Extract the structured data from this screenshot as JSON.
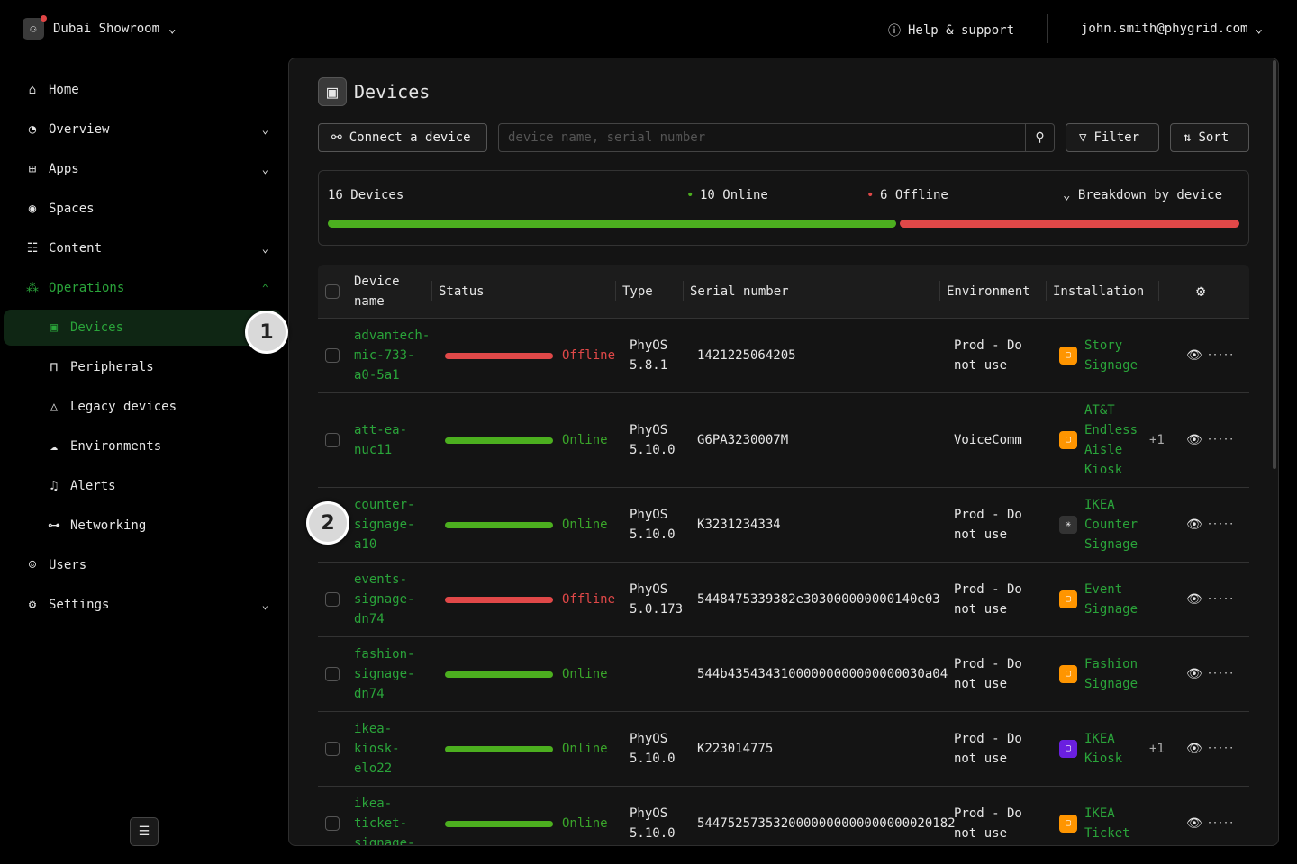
{
  "header": {
    "org": "Dubai Showroom",
    "help": "Help & support",
    "user": "john.smith@phygrid.com"
  },
  "nav": [
    {
      "label": "Home",
      "icon": "home-icon",
      "glyph": "⌂"
    },
    {
      "label": "Overview",
      "icon": "gauge-icon",
      "glyph": "◔",
      "chev": "⌄"
    },
    {
      "label": "Apps",
      "icon": "grid-icon",
      "glyph": "⊞",
      "chev": "⌄"
    },
    {
      "label": "Spaces",
      "icon": "location-pin-icon",
      "glyph": "◉"
    },
    {
      "label": "Content",
      "icon": "list-icon",
      "glyph": "☷",
      "chev": "⌄"
    },
    {
      "label": "Operations",
      "icon": "network-icon",
      "glyph": "⁂",
      "chev": "⌃",
      "green": true
    },
    {
      "label": "Devices",
      "icon": "device-icon",
      "glyph": "▣",
      "sub": true,
      "active": true
    },
    {
      "label": "Peripherals",
      "icon": "plug-icon",
      "glyph": "⊓",
      "sub": true
    },
    {
      "label": "Legacy devices",
      "icon": "warning-icon",
      "glyph": "△",
      "sub": true
    },
    {
      "label": "Environments",
      "icon": "cloud-icon",
      "glyph": "☁",
      "sub": true
    },
    {
      "label": "Alerts",
      "icon": "bell-icon",
      "glyph": "♫",
      "sub": true
    },
    {
      "label": "Networking",
      "icon": "sitemap-icon",
      "glyph": "⊶",
      "sub": true
    },
    {
      "label": "Users",
      "icon": "users-icon",
      "glyph": "☺"
    },
    {
      "label": "Settings",
      "icon": "gear-icon",
      "glyph": "⚙",
      "chev": "⌄"
    }
  ],
  "page": {
    "title": "Devices",
    "connect": "Connect a device",
    "search_placeholder": "device name, serial number",
    "filter": "Filter",
    "sort": "Sort"
  },
  "summary": {
    "total": "16 Devices",
    "online": "10 Online",
    "offline": "6 Offline",
    "breakdown": "Breakdown by device",
    "online_count": 10,
    "offline_count": 6
  },
  "colors": {
    "accent": "#2aa43a",
    "online": "#4caf1f",
    "offline": "#e04848",
    "orange": "#ff9500",
    "purple": "#6a1fe0"
  },
  "table": {
    "headers": [
      "Device name",
      "Status",
      "Type",
      "Serial number",
      "Environment",
      "Installation"
    ],
    "rows": [
      {
        "name": "advantech-mic-733-a0-5a1",
        "status": "Offline",
        "type": "PhyOS 5.8.1",
        "serial": "1421225064205",
        "env": "Prod - Do not use",
        "install": "Story Signage",
        "icolor": "orange",
        "extra": ""
      },
      {
        "name": "att-ea-nuc11",
        "status": "Online",
        "type": "PhyOS 5.10.0",
        "serial": "G6PA3230007M",
        "env": "VoiceComm",
        "install": "AT&T Endless Aisle Kiosk",
        "icolor": "orange",
        "extra": "+1"
      },
      {
        "name": "counter-signage-a10",
        "status": "Online",
        "type": "PhyOS 5.10.0",
        "serial": "K3231234334",
        "env": "Prod - Do not use",
        "install": "IKEA Counter Signage",
        "icolor": "gray",
        "extra": ""
      },
      {
        "name": "events-signage-dn74",
        "status": "Offline",
        "type": "PhyOS 5.0.173",
        "serial": "5448475339382e303000000000140e03",
        "env": "Prod - Do not use",
        "install": "Event Signage",
        "icolor": "orange",
        "extra": ""
      },
      {
        "name": "fashion-signage-dn74",
        "status": "Online",
        "type": "",
        "serial": "544b43543431000000000000000030a04",
        "env": "Prod - Do not use",
        "install": "Fashion Signage",
        "icolor": "orange",
        "extra": ""
      },
      {
        "name": "ikea-kiosk-elo22",
        "status": "Online",
        "type": "PhyOS 5.10.0",
        "serial": "K223014775",
        "env": "Prod - Do not use",
        "install": "IKEA Kiosk",
        "icolor": "purple",
        "extra": "+1"
      },
      {
        "name": "ikea-ticket-signage-",
        "status": "Online",
        "type": "PhyOS 5.10.0",
        "serial": "5447525735320000000000000000020182",
        "env": "Prod - Do not use",
        "install": "IKEA Ticket",
        "icolor": "orange",
        "extra": ""
      }
    ]
  },
  "annotations": [
    "1",
    "2"
  ]
}
